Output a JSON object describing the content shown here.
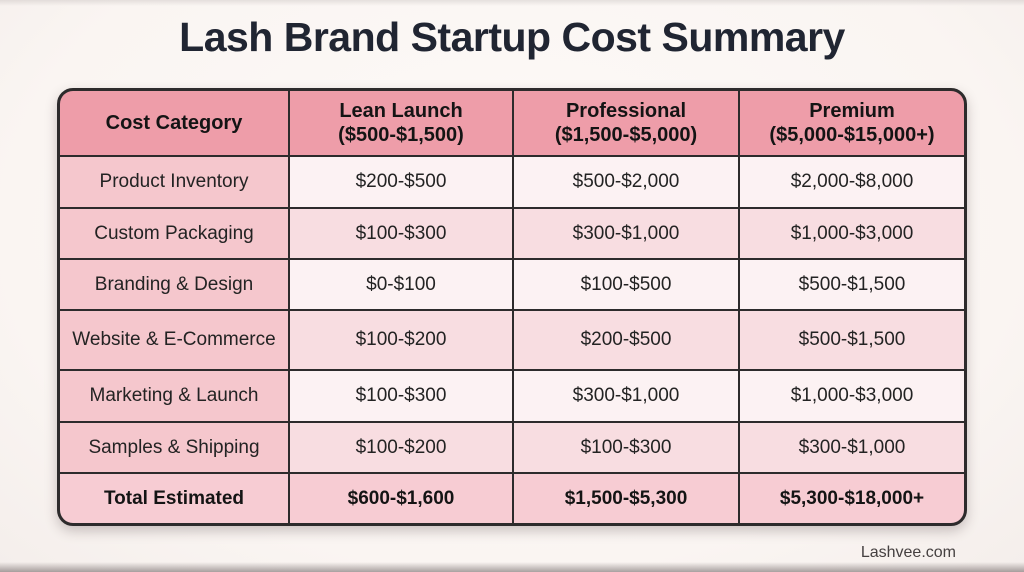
{
  "footer": {
    "text": "Lashvee.com"
  },
  "colors": {
    "header_pink": "#ee9da9",
    "category_pink": "#f5c7cd",
    "row_light": "#fcf2f3",
    "row_shaded": "#f8dde1",
    "total_pink": "#f7ccd3",
    "grid_border": "#2d2b2c",
    "title_text": "#202532",
    "page_background": "#fbf7f4"
  },
  "chart_data": {
    "type": "table",
    "title": "Lash Brand Startup Cost Summary",
    "headers": [
      {
        "label": "Cost Category",
        "range": ""
      },
      {
        "label": "Lean Launch",
        "range": "($500-$1,500)"
      },
      {
        "label": "Professional",
        "range": "($1,500-$5,000)"
      },
      {
        "label": "Premium",
        "range": "($5,000-$15,000+)"
      }
    ],
    "rows": [
      [
        "Product Inventory",
        "$200-$500",
        "$500-$2,000",
        "$2,000-$8,000"
      ],
      [
        "Custom Packaging",
        "$100-$300",
        "$300-$1,000",
        "$1,000-$3,000"
      ],
      [
        "Branding & Design",
        "$0-$100",
        "$100-$500",
        "$500-$1,500"
      ],
      [
        "Website & E-Commerce",
        "$100-$200",
        "$200-$500",
        "$500-$1,500"
      ],
      [
        "Marketing & Launch",
        "$100-$300",
        "$300-$1,000",
        "$1,000-$3,000"
      ],
      [
        "Samples & Shipping",
        "$100-$200",
        "$100-$300",
        "$300-$1,000"
      ]
    ],
    "total_row": [
      "Total Estimated",
      "$600-$1,600",
      "$1,500-$5,300",
      "$5,300-$18,000+"
    ]
  }
}
